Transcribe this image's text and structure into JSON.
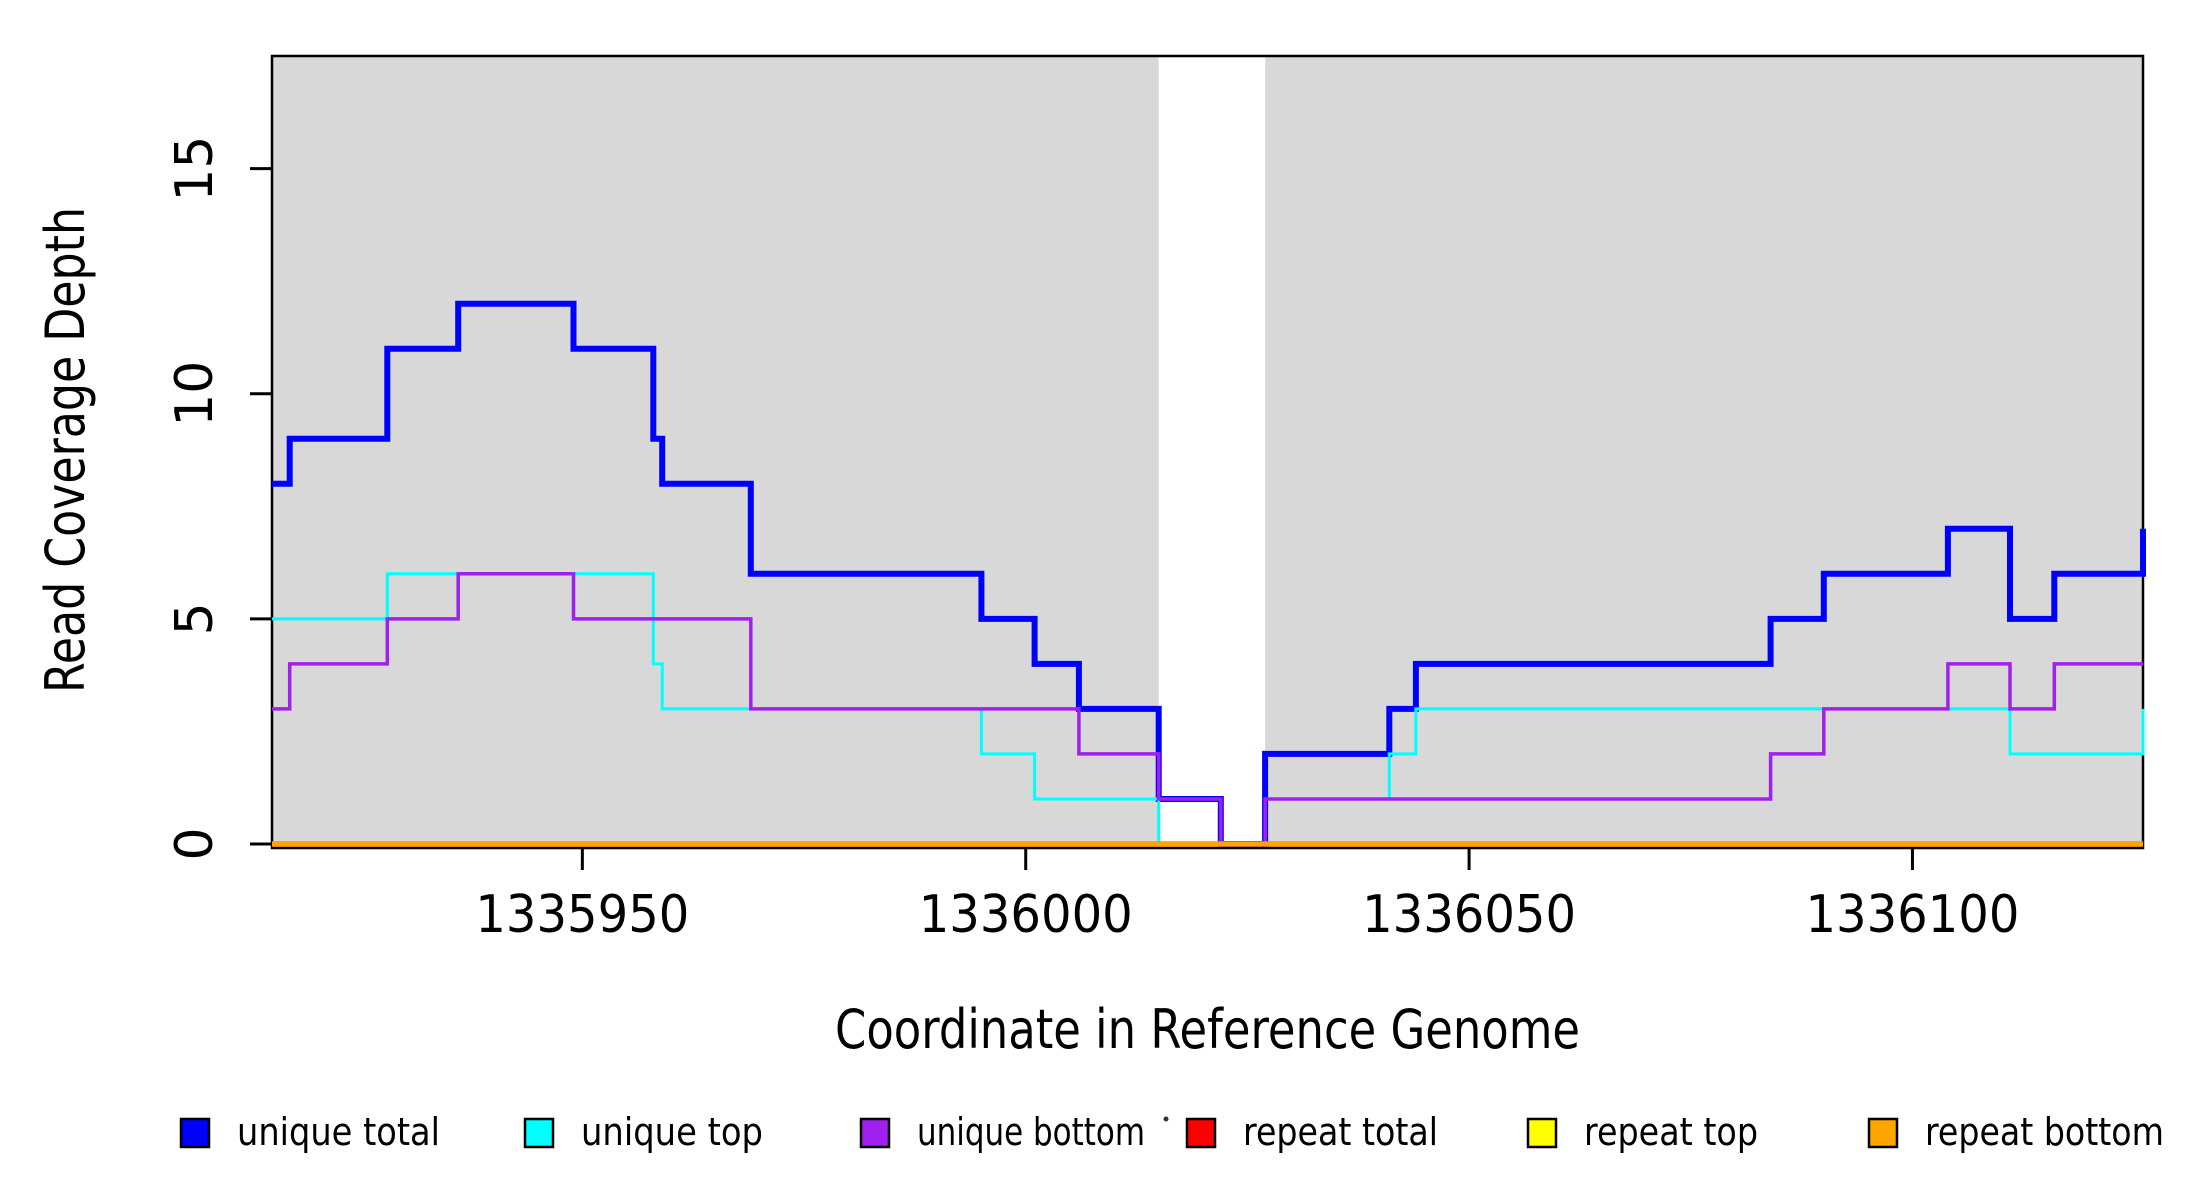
{
  "chart_data": {
    "type": "line",
    "subtype": "step",
    "title": "",
    "xlabel": "Coordinate in Reference Genome",
    "ylabel": "Read Coverage Depth",
    "xlim": [
      1335915,
      1336126
    ],
    "ylim": [
      0,
      17.5
    ],
    "x_ticks": [
      1335950,
      1336000,
      1336050,
      1336100
    ],
    "y_ticks": [
      0,
      5,
      10,
      15
    ],
    "grid": "off",
    "panel_background": "#D8D8D8",
    "gap_region": {
      "start": 1336015,
      "end": 1336027,
      "color": "#FFFFFF"
    },
    "axis_color": "#000000",
    "series": [
      {
        "name": "unique total",
        "color": "#0000FF",
        "line_width": 6,
        "steps": [
          [
            1335915,
            8
          ],
          [
            1335917,
            9
          ],
          [
            1335928,
            11
          ],
          [
            1335936,
            12
          ],
          [
            1335949,
            11
          ],
          [
            1335958,
            9
          ],
          [
            1335959,
            8
          ],
          [
            1335969,
            6
          ],
          [
            1335995,
            5
          ],
          [
            1336001,
            4
          ],
          [
            1336006,
            3
          ],
          [
            1336015,
            1
          ],
          [
            1336022,
            0
          ],
          [
            1336027,
            2
          ],
          [
            1336041,
            3
          ],
          [
            1336044,
            4
          ],
          [
            1336084,
            5
          ],
          [
            1336090,
            6
          ],
          [
            1336104,
            7
          ],
          [
            1336111,
            5
          ],
          [
            1336116,
            6
          ],
          [
            1336126,
            7
          ]
        ]
      },
      {
        "name": "unique top",
        "color": "#00FFFF",
        "line_width": 3,
        "steps": [
          [
            1335915,
            5
          ],
          [
            1335928,
            6
          ],
          [
            1335958,
            4
          ],
          [
            1335959,
            3
          ],
          [
            1335995,
            2
          ],
          [
            1336001,
            1
          ],
          [
            1336015,
            0
          ],
          [
            1336027,
            1
          ],
          [
            1336041,
            2
          ],
          [
            1336044,
            3
          ],
          [
            1336111,
            2
          ],
          [
            1336126,
            3
          ]
        ]
      },
      {
        "name": "unique bottom",
        "color": "#A020F0",
        "line_width": 3.5,
        "steps": [
          [
            1335915,
            3
          ],
          [
            1335917,
            4
          ],
          [
            1335928,
            5
          ],
          [
            1335936,
            6
          ],
          [
            1335949,
            5
          ],
          [
            1335969,
            3
          ],
          [
            1336006,
            2
          ],
          [
            1336015,
            1
          ],
          [
            1336022,
            0
          ],
          [
            1336027,
            1
          ],
          [
            1336084,
            2
          ],
          [
            1336090,
            3
          ],
          [
            1336104,
            4
          ],
          [
            1336111,
            3
          ],
          [
            1336116,
            4
          ]
        ]
      },
      {
        "name": "repeat total",
        "color": "#FF0000",
        "line_width": 5.5,
        "steps": [
          [
            1335915,
            0
          ]
        ]
      },
      {
        "name": "repeat top",
        "color": "#FFFF00",
        "line_width": 5,
        "steps": [
          [
            1335915,
            0
          ]
        ]
      },
      {
        "name": "repeat bottom",
        "color": "#FFA500",
        "line_width": 4.5,
        "steps": [
          [
            1335915,
            0
          ]
        ]
      }
    ],
    "legend": {
      "position": "bottom",
      "items": [
        {
          "label": "unique total",
          "color": "#0000FF"
        },
        {
          "label": "unique top",
          "color": "#00FFFF"
        },
        {
          "label": "unique bottom",
          "color": "#A020F0"
        },
        {
          "label": "repeat total",
          "color": "#FF0000"
        },
        {
          "label": "repeat top",
          "color": "#FFFF00"
        },
        {
          "label": "repeat bottom",
          "color": "#FFA500"
        }
      ]
    }
  }
}
